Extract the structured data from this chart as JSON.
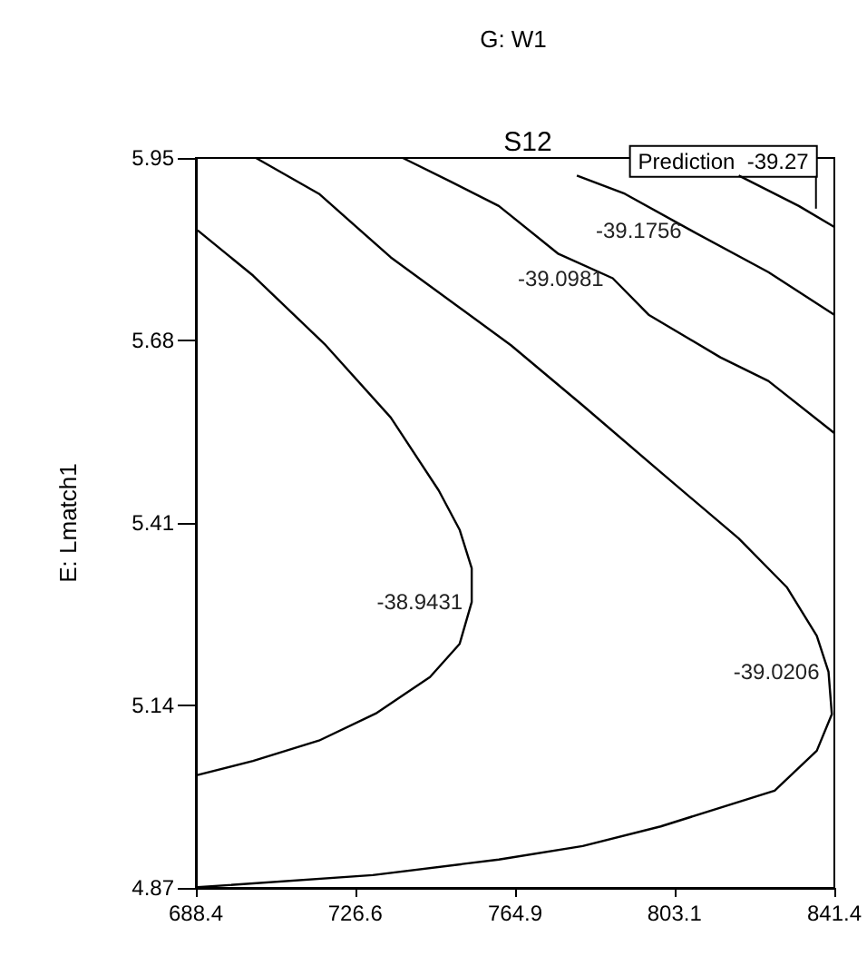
{
  "chart_data": {
    "type": "line",
    "title": "G: W1",
    "subtitle": "S12",
    "ylabel": "E: Lmatch1",
    "grid": false,
    "marker": "none",
    "line_style": "solid",
    "xlim": [
      688.4,
      841.4
    ],
    "xticks": [
      688.4,
      726.6,
      764.9,
      803.1,
      841.4
    ],
    "ylim": [
      4.87,
      5.95
    ],
    "yticks": [
      4.87,
      5.14,
      5.41,
      5.68,
      5.95
    ],
    "annotations": [
      {
        "text": "Prediction  -39.27",
        "x": 837,
        "y": 5.875
      }
    ],
    "series": [
      {
        "name": "-38.9431",
        "color": "#000000",
        "x": [
          688.8,
          702.1,
          719.5,
          735.1,
          746.6,
          751.6,
          754.5,
          754.5,
          751.6,
          744.5,
          731.5,
          717.9,
          702.1,
          688.8
        ],
        "values": [
          5.843,
          5.776,
          5.673,
          5.566,
          5.458,
          5.4,
          5.343,
          5.293,
          5.231,
          5.182,
          5.128,
          5.088,
          5.058,
          5.037
        ]
      },
      {
        "name": "-39.0206",
        "color": "#000000",
        "x": [
          702.8,
          717.9,
          735.1,
          763.9,
          781.1,
          799.8,
          818.5,
          830,
          837.2,
          840,
          840.8,
          837.2,
          827.1,
          799.8,
          781.1,
          761,
          730.8,
          688.8
        ],
        "values": [
          5.95,
          5.897,
          5.803,
          5.673,
          5.584,
          5.485,
          5.387,
          5.315,
          5.243,
          5.19,
          5.127,
          5.073,
          5.014,
          4.961,
          4.932,
          4.912,
          4.889,
          4.871
        ]
      },
      {
        "name": "-39.0981",
        "color": "#000000",
        "x": [
          738,
          749.5,
          761,
          775.3,
          788.3,
          796.9,
          814.1,
          825.6,
          841.4
        ],
        "values": [
          5.95,
          5.915,
          5.879,
          5.808,
          5.772,
          5.718,
          5.655,
          5.62,
          5.543
        ]
      },
      {
        "name": "-39.1756",
        "color": "#000000",
        "x": [
          779.7,
          791.2,
          807,
          825.6,
          841.4
        ],
        "values": [
          5.924,
          5.897,
          5.843,
          5.781,
          5.718
        ]
      },
      {
        "color": "#000000",
        "x": [
          818.5,
          832.9,
          841.4
        ],
        "values": [
          5.924,
          5.879,
          5.848
        ]
      }
    ]
  }
}
